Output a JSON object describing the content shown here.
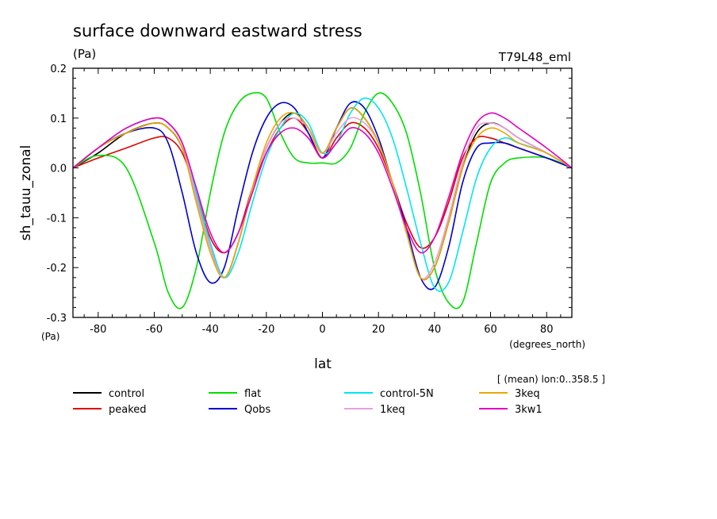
{
  "header": {
    "title": "surface downward eastward stress",
    "units": "(Pa)",
    "run_id": "T79L48_eml"
  },
  "chart_data": {
    "type": "line",
    "title": "surface downward eastward stress",
    "xlabel": "lat",
    "ylabel": "sh_tauu_zonal",
    "x_units": "(degrees_north)",
    "y_units": "(Pa)",
    "xlim": [
      -89,
      89
    ],
    "ylim": [
      -0.3,
      0.2
    ],
    "x_ticks": [
      -80,
      -60,
      -40,
      -20,
      0,
      20,
      40,
      60,
      80
    ],
    "x_tick_labels": [
      "-80",
      "-60",
      "-40",
      "-20",
      "0",
      "20",
      "40",
      "60",
      "80"
    ],
    "y_ticks": [
      -0.3,
      -0.2,
      -0.1,
      0.0,
      0.1,
      0.2
    ],
    "y_tick_labels": [
      "-0.3",
      "-0.2",
      "-0.1",
      "0.0",
      "0.1",
      "0.2"
    ],
    "annotation": "[ (mean) lon:0..358.5 ]",
    "legend_position": "bottom",
    "x": [
      -89,
      -80,
      -70,
      -60,
      -55,
      -50,
      -45,
      -40,
      -35,
      -30,
      -25,
      -20,
      -15,
      -10,
      -5,
      0,
      5,
      10,
      15,
      20,
      25,
      30,
      35,
      40,
      45,
      50,
      55,
      60,
      65,
      70,
      80,
      89
    ],
    "series": [
      {
        "name": "control",
        "color": "#000000",
        "values": [
          0.0,
          0.03,
          0.07,
          0.09,
          0.08,
          0.04,
          -0.06,
          -0.16,
          -0.22,
          -0.15,
          -0.04,
          0.04,
          0.09,
          0.11,
          0.08,
          0.03,
          0.08,
          0.12,
          0.1,
          0.05,
          -0.03,
          -0.13,
          -0.22,
          -0.2,
          -0.11,
          0.0,
          0.07,
          0.09,
          0.08,
          0.06,
          0.03,
          0.0
        ]
      },
      {
        "name": "peaked",
        "color": "#e00000",
        "values": [
          0.0,
          0.02,
          0.04,
          0.06,
          0.06,
          0.03,
          -0.05,
          -0.14,
          -0.17,
          -0.13,
          -0.04,
          0.03,
          0.08,
          0.1,
          0.07,
          0.02,
          0.06,
          0.09,
          0.08,
          0.04,
          -0.03,
          -0.11,
          -0.16,
          -0.14,
          -0.07,
          0.02,
          0.06,
          0.06,
          0.05,
          0.04,
          0.02,
          0.0
        ]
      },
      {
        "name": "flat",
        "color": "#00dd00",
        "values": [
          0.0,
          0.025,
          0.0,
          -0.15,
          -0.25,
          -0.28,
          -0.2,
          -0.05,
          0.07,
          0.13,
          0.15,
          0.14,
          0.07,
          0.02,
          0.01,
          0.01,
          0.01,
          0.04,
          0.11,
          0.15,
          0.13,
          0.07,
          -0.05,
          -0.2,
          -0.27,
          -0.27,
          -0.15,
          -0.03,
          0.01,
          0.02,
          0.02,
          0.0
        ]
      },
      {
        "name": "Qobs",
        "color": "#0000cc",
        "values": [
          0.0,
          0.04,
          0.07,
          0.08,
          0.05,
          -0.05,
          -0.17,
          -0.23,
          -0.2,
          -0.08,
          0.03,
          0.1,
          0.13,
          0.12,
          0.07,
          0.02,
          0.08,
          0.13,
          0.12,
          0.06,
          -0.03,
          -0.12,
          -0.22,
          -0.24,
          -0.16,
          -0.03,
          0.04,
          0.05,
          0.05,
          0.04,
          0.02,
          0.0
        ]
      },
      {
        "name": "control-5N",
        "color": "#00e5ee",
        "values": [
          0.0,
          0.04,
          0.08,
          0.1,
          0.09,
          0.05,
          -0.05,
          -0.15,
          -0.22,
          -0.17,
          -0.07,
          0.02,
          0.08,
          0.11,
          0.09,
          0.03,
          0.05,
          0.11,
          0.14,
          0.12,
          0.06,
          -0.04,
          -0.15,
          -0.24,
          -0.23,
          -0.13,
          -0.02,
          0.04,
          0.06,
          0.05,
          0.03,
          0.0
        ]
      },
      {
        "name": "1keq",
        "color": "#e8a0e0",
        "values": [
          0.0,
          0.04,
          0.08,
          0.1,
          0.09,
          0.05,
          -0.06,
          -0.16,
          -0.22,
          -0.15,
          -0.04,
          0.04,
          0.09,
          0.1,
          0.08,
          0.03,
          0.07,
          0.1,
          0.09,
          0.05,
          -0.03,
          -0.13,
          -0.22,
          -0.19,
          -0.1,
          0.01,
          0.08,
          0.09,
          0.08,
          0.06,
          0.03,
          0.0
        ]
      },
      {
        "name": "3keq",
        "color": "#e8a800",
        "values": [
          0.0,
          0.04,
          0.07,
          0.09,
          0.08,
          0.04,
          -0.07,
          -0.17,
          -0.22,
          -0.15,
          -0.04,
          0.05,
          0.1,
          0.11,
          0.08,
          0.03,
          0.08,
          0.12,
          0.1,
          0.05,
          -0.03,
          -0.13,
          -0.22,
          -0.2,
          -0.11,
          0.0,
          0.06,
          0.08,
          0.07,
          0.05,
          0.03,
          0.0
        ]
      },
      {
        "name": "3kw1",
        "color": "#e000c0",
        "values": [
          0.0,
          0.04,
          0.08,
          0.1,
          0.09,
          0.05,
          -0.04,
          -0.13,
          -0.17,
          -0.13,
          -0.05,
          0.03,
          0.07,
          0.08,
          0.06,
          0.02,
          0.05,
          0.08,
          0.07,
          0.03,
          -0.04,
          -0.12,
          -0.17,
          -0.14,
          -0.06,
          0.03,
          0.09,
          0.11,
          0.1,
          0.08,
          0.04,
          0.0
        ]
      }
    ]
  }
}
